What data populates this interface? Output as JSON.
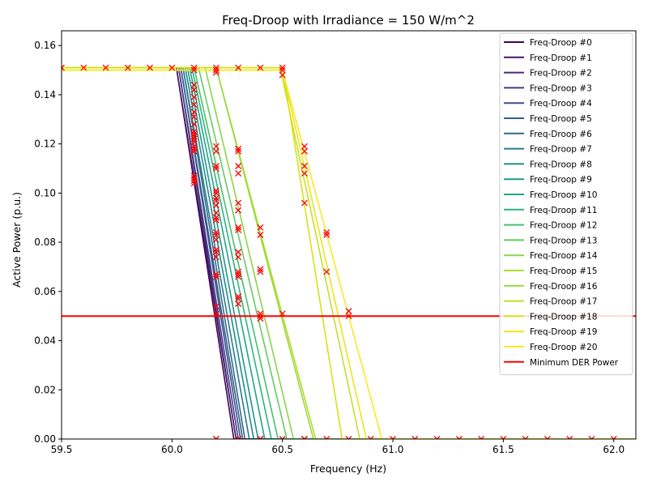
{
  "chart_data": {
    "type": "line",
    "title": "Freq-Droop with Irradiance = 150 W/m^2",
    "xlabel": "Frequency (Hz)",
    "ylabel": "Active Power (p.u.)",
    "xlim": [
      59.5,
      62.1
    ],
    "ylim": [
      0.0,
      0.166
    ],
    "xticks": [
      "59.5",
      "60.0",
      "60.5",
      "61.0",
      "61.5",
      "62.0"
    ],
    "xtick_values": [
      59.5,
      60.0,
      60.5,
      61.0,
      61.5,
      62.0
    ],
    "yticks": [
      "0.00",
      "0.02",
      "0.04",
      "0.06",
      "0.08",
      "0.10",
      "0.12",
      "0.14",
      "0.16"
    ],
    "ytick_values": [
      0.0,
      0.02,
      0.04,
      0.06,
      0.08,
      0.1,
      0.12,
      0.14,
      0.16
    ],
    "grid": false,
    "legend_position": "top-right",
    "colormap": "viridis",
    "series": [
      {
        "name": "Freq-Droop #0",
        "color": "#440154",
        "x": [
          59.5,
          60.02,
          60.28,
          62.1
        ],
        "y": [
          0.151,
          0.151,
          0.0,
          0.0
        ]
      },
      {
        "name": "Freq-Droop #1",
        "color": "#481769",
        "x": [
          59.5,
          60.02,
          60.29,
          62.1
        ],
        "y": [
          0.151,
          0.151,
          0.0,
          0.0
        ]
      },
      {
        "name": "Freq-Droop #2",
        "color": "#472a7a",
        "x": [
          59.5,
          60.03,
          60.29,
          62.1
        ],
        "y": [
          0.151,
          0.151,
          0.0,
          0.0
        ]
      },
      {
        "name": "Freq-Droop #3",
        "color": "#433d84",
        "x": [
          59.5,
          60.03,
          60.3,
          62.1
        ],
        "y": [
          0.151,
          0.151,
          0.0,
          0.0
        ]
      },
      {
        "name": "Freq-Droop #4",
        "color": "#3d4e8a",
        "x": [
          59.5,
          60.04,
          60.31,
          62.1
        ],
        "y": [
          0.151,
          0.151,
          0.0,
          0.0
        ]
      },
      {
        "name": "Freq-Droop #5",
        "color": "#355e8d",
        "x": [
          59.5,
          60.04,
          60.32,
          62.1
        ],
        "y": [
          0.151,
          0.151,
          0.0,
          0.0
        ]
      },
      {
        "name": "Freq-Droop #6",
        "color": "#2e6d8e",
        "x": [
          59.5,
          60.05,
          60.33,
          62.1
        ],
        "y": [
          0.151,
          0.151,
          0.0,
          0.0
        ]
      },
      {
        "name": "Freq-Droop #7",
        "color": "#297b8e",
        "x": [
          59.5,
          60.05,
          60.35,
          62.1
        ],
        "y": [
          0.151,
          0.151,
          0.0,
          0.0
        ]
      },
      {
        "name": "Freq-Droop #8",
        "color": "#23898e",
        "x": [
          59.5,
          60.06,
          60.37,
          62.1
        ],
        "y": [
          0.151,
          0.151,
          0.0,
          0.0
        ]
      },
      {
        "name": "Freq-Droop #9",
        "color": "#1f978b",
        "x": [
          59.5,
          60.07,
          60.39,
          62.1
        ],
        "y": [
          0.151,
          0.151,
          0.0,
          0.0
        ]
      },
      {
        "name": "Freq-Droop #10",
        "color": "#21a585",
        "x": [
          59.5,
          60.08,
          60.42,
          62.1
        ],
        "y": [
          0.151,
          0.151,
          0.0,
          0.0
        ]
      },
      {
        "name": "Freq-Droop #11",
        "color": "#2eb37c",
        "x": [
          59.5,
          60.09,
          60.45,
          62.1
        ],
        "y": [
          0.151,
          0.151,
          0.0,
          0.0
        ]
      },
      {
        "name": "Freq-Droop #12",
        "color": "#46c06f",
        "x": [
          59.5,
          60.1,
          60.48,
          62.1
        ],
        "y": [
          0.151,
          0.151,
          0.0,
          0.0
        ]
      },
      {
        "name": "Freq-Droop #13",
        "color": "#65cb5e",
        "x": [
          59.5,
          60.12,
          60.52,
          62.1
        ],
        "y": [
          0.151,
          0.151,
          0.0,
          0.0
        ]
      },
      {
        "name": "Freq-Droop #14",
        "color": "#89d548",
        "x": [
          59.5,
          60.15,
          60.55,
          62.1
        ],
        "y": [
          0.151,
          0.151,
          0.0,
          0.0
        ]
      },
      {
        "name": "Freq-Droop #15",
        "color": "#b0dd2f",
        "x": [
          59.5,
          60.2,
          60.65,
          62.1
        ],
        "y": [
          0.151,
          0.151,
          0.0,
          0.0
        ]
      },
      {
        "name": "Freq-Droop #16",
        "color": "#9bd93c",
        "x": [
          59.5,
          60.2,
          60.64,
          62.1
        ],
        "y": [
          0.151,
          0.151,
          0.0,
          0.0
        ]
      },
      {
        "name": "Freq-Droop #17",
        "color": "#c5df2a",
        "x": [
          59.5,
          60.49,
          60.85,
          62.1
        ],
        "y": [
          0.151,
          0.151,
          0.0,
          0.0
        ]
      },
      {
        "name": "Freq-Droop #18",
        "color": "#d8e219",
        "x": [
          59.5,
          60.5,
          60.77,
          62.1
        ],
        "y": [
          0.151,
          0.151,
          0.0,
          0.0
        ]
      },
      {
        "name": "Freq-Droop #19",
        "color": "#ebe51a",
        "x": [
          59.5,
          60.5,
          60.88,
          62.1
        ],
        "y": [
          0.15,
          0.15,
          0.0,
          0.0
        ]
      },
      {
        "name": "Freq-Droop #20",
        "color": "#fde725",
        "x": [
          59.5,
          60.5,
          60.95,
          62.1
        ],
        "y": [
          0.15,
          0.15,
          0.0,
          0.0
        ]
      },
      {
        "name": "Minimum DER Power",
        "color": "#ff0000",
        "x": [
          59.5,
          62.1
        ],
        "y": [
          0.05,
          0.05
        ]
      }
    ],
    "markers": {
      "symbol": "x",
      "color": "#ff0000",
      "x": [
        59.5,
        59.6,
        59.7,
        59.8,
        59.9,
        60.0,
        60.1,
        60.2,
        60.3,
        60.4,
        60.5,
        60.1,
        60.1,
        60.1,
        60.1,
        60.1,
        60.1,
        60.1,
        60.1,
        60.1,
        60.1,
        60.1,
        60.1,
        60.1,
        60.1,
        60.1,
        60.1,
        60.1,
        60.1,
        60.1,
        60.1,
        60.2,
        60.2,
        60.2,
        60.2,
        60.2,
        60.2,
        60.2,
        60.2,
        60.2,
        60.2,
        60.2,
        60.2,
        60.2,
        60.2,
        60.2,
        60.2,
        60.2,
        60.2,
        60.2,
        60.2,
        60.2,
        60.2,
        60.2,
        60.2,
        60.2,
        60.3,
        60.3,
        60.3,
        60.3,
        60.3,
        60.3,
        60.3,
        60.3,
        60.3,
        60.3,
        60.3,
        60.3,
        60.3,
        60.3,
        60.3,
        60.3,
        60.3,
        60.4,
        60.4,
        60.4,
        60.4,
        60.4,
        60.4,
        60.4,
        60.4,
        60.5,
        60.5,
        60.5,
        60.6,
        60.6,
        60.6,
        60.6,
        60.6,
        60.6,
        60.7,
        60.7,
        60.7,
        60.8,
        60.8,
        60.2,
        60.3,
        60.4,
        60.5,
        60.6,
        60.7,
        60.8,
        60.9,
        61.0,
        61.1,
        61.2,
        61.3,
        61.4,
        61.5,
        61.6,
        61.7,
        61.8,
        61.9,
        62.0
      ],
      "y": [
        0.151,
        0.151,
        0.151,
        0.151,
        0.151,
        0.151,
        0.151,
        0.151,
        0.151,
        0.151,
        0.151,
        0.15,
        0.144,
        0.142,
        0.139,
        0.136,
        0.133,
        0.131,
        0.128,
        0.125,
        0.123,
        0.121,
        0.119,
        0.117,
        0.107,
        0.106,
        0.105,
        0.104,
        0.122,
        0.124,
        0.118,
        0.149,
        0.15,
        0.119,
        0.117,
        0.111,
        0.11,
        0.101,
        0.1,
        0.098,
        0.097,
        0.092,
        0.09,
        0.089,
        0.084,
        0.083,
        0.081,
        0.077,
        0.076,
        0.074,
        0.067,
        0.066,
        0.054,
        0.051,
        0.0,
        0.095,
        0.118,
        0.117,
        0.111,
        0.108,
        0.096,
        0.093,
        0.085,
        0.076,
        0.074,
        0.068,
        0.067,
        0.066,
        0.058,
        0.057,
        0.055,
        0.0,
        0.086,
        0.086,
        0.083,
        0.069,
        0.068,
        0.051,
        0.05,
        0.049,
        0.0,
        0.15,
        0.148,
        0.051,
        0.119,
        0.117,
        0.111,
        0.108,
        0.096,
        0.0,
        0.084,
        0.083,
        0.068,
        0.052,
        0.05,
        0.0,
        0.0,
        0.0,
        0.0,
        0.0,
        0.0,
        0.0,
        0.0,
        0.0,
        0.0,
        0.0,
        0.0,
        0.0,
        0.0,
        0.0,
        0.0,
        0.0,
        0.0,
        0.0
      ]
    }
  }
}
